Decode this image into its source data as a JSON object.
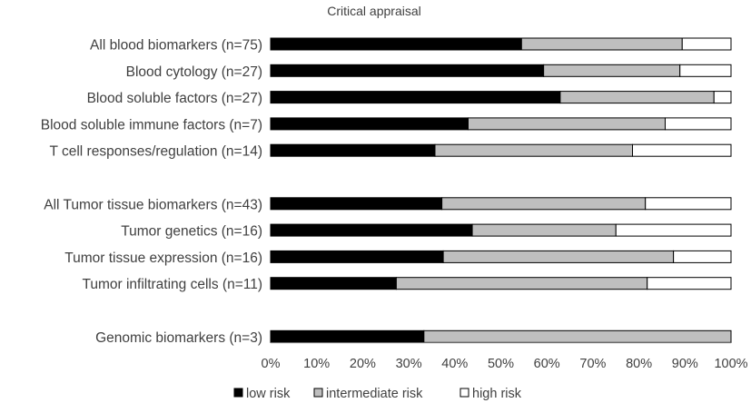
{
  "chart_data": {
    "type": "bar",
    "orientation": "horizontal",
    "stacked": true,
    "percent": true,
    "title": "Critical appraisal",
    "xlim": [
      0,
      100
    ],
    "x_ticks": [
      "0%",
      "10%",
      "20%",
      "30%",
      "40%",
      "50%",
      "60%",
      "70%",
      "80%",
      "90%",
      "100%"
    ],
    "grid": false,
    "legend_position": "bottom",
    "categories": [
      "All blood biomarkers (n=75)",
      "Blood cytology (n=27)",
      "Blood soluble factors (n=27)",
      "Blood soluble immune factors (n=7)",
      "T cell responses/regulation (n=14)",
      "",
      "All Tumor tissue biomarkers (n=43)",
      "Tumor genetics (n=16)",
      "Tumor tissue expression (n=16)",
      "Tumor infiltrating cells (n=11)",
      "",
      "Genomic biomarkers (n=3)"
    ],
    "series": [
      {
        "name": "low risk",
        "color": "#000000",
        "values": [
          54.5,
          59.3,
          62.9,
          42.9,
          35.7,
          null,
          37.2,
          43.8,
          37.5,
          27.3,
          null,
          33.3
        ]
      },
      {
        "name": "intermediate risk",
        "color": "#bfbfbf",
        "values": [
          34.9,
          29.6,
          33.4,
          42.8,
          42.9,
          null,
          44.2,
          31.2,
          50.0,
          54.5,
          null,
          66.7
        ]
      },
      {
        "name": "high risk",
        "color": "#ffffff",
        "values": [
          10.6,
          11.1,
          3.7,
          14.3,
          21.4,
          null,
          18.6,
          25.0,
          12.5,
          18.2,
          null,
          0
        ]
      }
    ]
  }
}
